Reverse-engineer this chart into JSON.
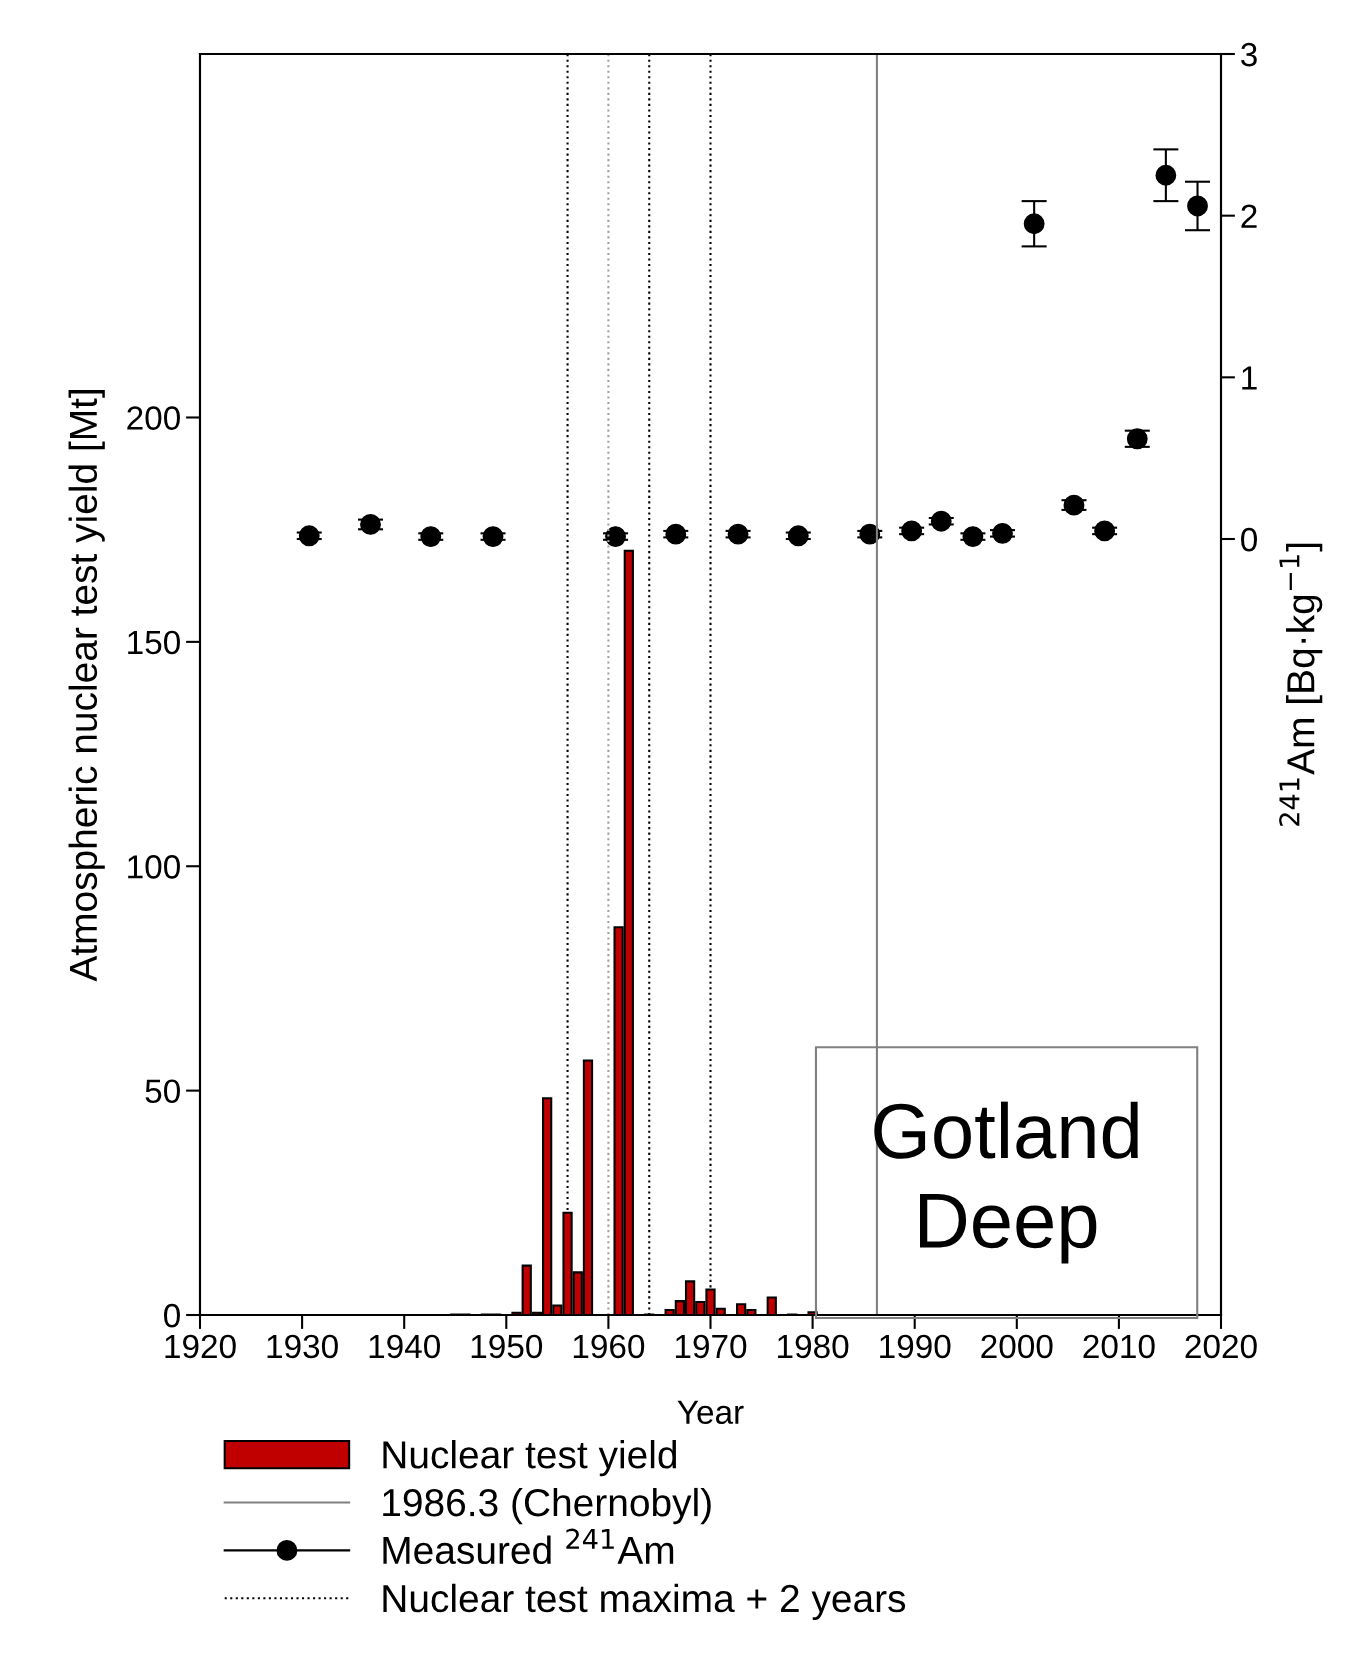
{
  "chart_data": {
    "type": "bar",
    "xlabel": "Year",
    "ylabel": "Atmospheric nuclear test yield [Mt]",
    "y2label": "$^{241}$Am [Bq·kg$^{−1}$]",
    "xlim": [
      1920,
      2020
    ],
    "xticks": [
      1920,
      1930,
      1940,
      1950,
      1960,
      1970,
      1980,
      1990,
      2000,
      2010,
      2020
    ],
    "ylim": [
      0,
      281
    ],
    "yticks": [
      0,
      50,
      100,
      150,
      200
    ],
    "y2lim": [
      -4.8,
      3
    ],
    "y2ticks": [
      0,
      1,
      2,
      3
    ],
    "grid": false,
    "legend": "bottom left",
    "series": [
      {
        "name": "Nuclear test yield",
        "color": "#c00000",
        "x": [
          1945,
          1946,
          1948,
          1949,
          1951,
          1952,
          1953,
          1954,
          1955,
          1956,
          1957,
          1958,
          1961,
          1962,
          1964,
          1966,
          1967,
          1968,
          1969,
          1970,
          1971,
          1973,
          1974,
          1976,
          1978,
          1980
        ],
        "values": [
          0.1,
          0.1,
          0.1,
          0.1,
          0.5,
          11.0,
          0.5,
          48.3,
          2.1,
          22.8,
          9.5,
          56.7,
          86.4,
          170.3,
          0.1,
          1.1,
          3.1,
          7.5,
          2.9,
          5.7,
          1.4,
          2.4,
          1.1,
          3.9,
          0.1,
          0.6
        ]
      },
      {
        "name": "Measured $^{241}$Am",
        "type": "scatter",
        "axis": "y2",
        "color": "#000000",
        "marker": "circle",
        "line_style": "solid",
        "x": [
          1930.7,
          1936.7,
          1942.6,
          1948.7,
          1960.7,
          1966.6,
          1972.7,
          1978.6,
          1985.6,
          1989.7,
          1992.6,
          1995.7,
          1998.6,
          2001.7,
          2005.6,
          2008.6,
          2011.8,
          2014.6,
          2017.7
        ],
        "values": [
          0.02,
          0.09,
          0.015,
          0.015,
          0.015,
          0.03,
          0.03,
          0.02,
          0.03,
          0.05,
          0.11,
          0.015,
          0.035,
          1.95,
          0.21,
          0.05,
          0.62,
          2.25,
          2.06
        ],
        "errors": [
          0.02,
          0.03,
          0.02,
          0.02,
          0.02,
          0.02,
          0.02,
          0.02,
          0.02,
          0.02,
          0.02,
          0.02,
          0.02,
          0.14,
          0.03,
          0.02,
          0.05,
          0.16,
          0.15
        ]
      }
    ],
    "ref_lines": [
      {
        "axis": "x",
        "value": 1986.3,
        "label": "1986.3 (Chernobyl)",
        "color": "#808080",
        "line_style": "solid"
      },
      {
        "axis": "x",
        "value": 1956,
        "label": "Nuclear test maxima + 2 years",
        "color": "#000000",
        "line_style": "dotted"
      },
      {
        "axis": "x",
        "value": 1960,
        "color": "#a0a0a0",
        "line_style": "dotted"
      },
      {
        "axis": "x",
        "value": 1964,
        "color": "#000000",
        "line_style": "dotted"
      },
      {
        "axis": "x",
        "value": 1970,
        "color": "#000000",
        "line_style": "dotted"
      }
    ],
    "annotations": [
      "Gotland\nDeep"
    ]
  }
}
